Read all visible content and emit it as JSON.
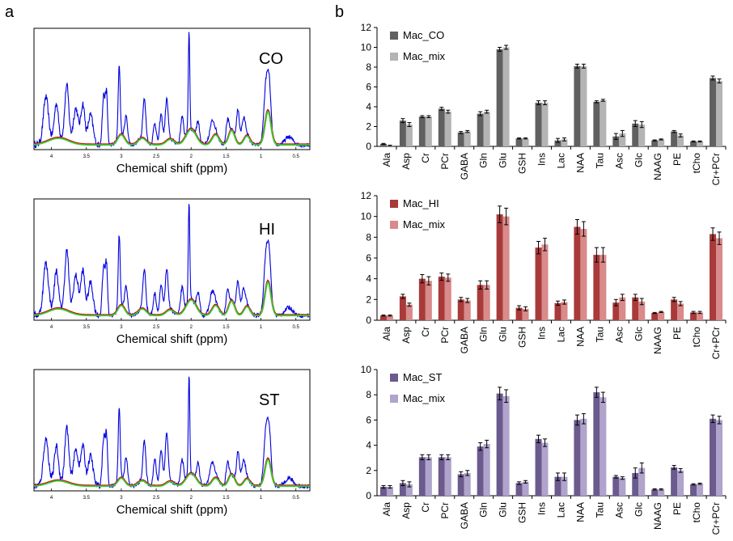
{
  "panel_labels": {
    "a": "a",
    "b": "b"
  },
  "spectra": {
    "xlabel": "Chemical shift (ppm)",
    "ticks": [
      "4",
      "3.5",
      "3",
      "2.5",
      "2",
      "1.5",
      "1",
      "0.5"
    ],
    "tick_values": [
      4,
      3.5,
      3,
      2.5,
      2,
      1.5,
      1,
      0.5
    ],
    "xlim": [
      4.25,
      0.3
    ],
    "colors": {
      "spectrum": "#0000dd",
      "fit": "#dd0000",
      "macro": "#33cc33"
    },
    "panels": [
      {
        "label": "CO"
      },
      {
        "label": "HI"
      },
      {
        "label": "ST"
      }
    ]
  },
  "chart_data": [
    {
      "type": "bar",
      "categories": [
        "Ala",
        "Asp",
        "Cr",
        "PCr",
        "GABA",
        "Gln",
        "Glu",
        "GSH",
        "Ins",
        "Lac",
        "NAA",
        "Tau",
        "Asc",
        "Glc",
        "NAAG",
        "PE",
        "tCho",
        "Cr+PCr"
      ],
      "ylim": [
        0,
        12
      ],
      "yticks": [
        0,
        2,
        4,
        6,
        8,
        10,
        12
      ],
      "legend_position": "top-left",
      "series": [
        {
          "name": "Mac_CO",
          "color": "#606060",
          "values": [
            0.25,
            2.6,
            3.0,
            3.8,
            1.4,
            3.3,
            9.8,
            0.8,
            4.4,
            0.6,
            8.1,
            4.5,
            1.0,
            2.3,
            0.6,
            1.5,
            0.5,
            6.9
          ],
          "errors": [
            0.05,
            0.2,
            0.1,
            0.15,
            0.1,
            0.2,
            0.2,
            0.05,
            0.2,
            0.2,
            0.2,
            0.1,
            0.3,
            0.3,
            0.05,
            0.1,
            0.05,
            0.2
          ]
        },
        {
          "name": "Mac_mix",
          "color": "#b4b4b4",
          "values": [
            0.1,
            2.2,
            3.0,
            3.5,
            1.5,
            3.5,
            10.0,
            0.8,
            4.4,
            0.7,
            8.1,
            4.65,
            1.3,
            2.2,
            0.7,
            1.1,
            0.5,
            6.6
          ],
          "errors": [
            0.02,
            0.2,
            0.1,
            0.15,
            0.1,
            0.15,
            0.2,
            0.05,
            0.2,
            0.15,
            0.2,
            0.1,
            0.3,
            0.3,
            0.05,
            0.15,
            0.05,
            0.2
          ]
        }
      ]
    },
    {
      "type": "bar",
      "categories": [
        "Ala",
        "Asp",
        "Cr",
        "PCr",
        "GABA",
        "Gln",
        "Glu",
        "GSH",
        "Ins",
        "Lac",
        "NAA",
        "Tau",
        "Asc",
        "Glc",
        "NAAG",
        "PE",
        "tCho",
        "Cr+PCr"
      ],
      "ylim": [
        0,
        12
      ],
      "yticks": [
        0,
        2,
        4,
        6,
        8,
        10,
        12
      ],
      "legend_position": "top-left",
      "series": [
        {
          "name": "Mac_HI",
          "color": "#a83a3a",
          "values": [
            0.45,
            2.3,
            4.0,
            4.2,
            2.0,
            3.4,
            10.2,
            1.2,
            7.0,
            1.65,
            9.0,
            6.3,
            1.7,
            2.2,
            0.7,
            2.0,
            0.75,
            8.3
          ],
          "errors": [
            0.05,
            0.2,
            0.4,
            0.35,
            0.2,
            0.4,
            0.8,
            0.2,
            0.6,
            0.2,
            0.7,
            0.7,
            0.3,
            0.3,
            0.05,
            0.2,
            0.1,
            0.6
          ]
        },
        {
          "name": "Mac_mix",
          "color": "#d98a8a",
          "values": [
            0.45,
            1.5,
            3.8,
            4.1,
            1.9,
            3.4,
            10.0,
            1.1,
            7.3,
            1.75,
            8.8,
            6.3,
            2.2,
            1.8,
            0.8,
            1.6,
            0.75,
            7.9
          ],
          "errors": [
            0.05,
            0.15,
            0.4,
            0.35,
            0.2,
            0.4,
            0.8,
            0.2,
            0.6,
            0.2,
            0.7,
            0.7,
            0.3,
            0.3,
            0.05,
            0.2,
            0.1,
            0.6
          ]
        }
      ]
    },
    {
      "type": "bar",
      "categories": [
        "Ala",
        "Asp",
        "Cr",
        "PCr",
        "GABA",
        "Gln",
        "Glu",
        "GSH",
        "Ins",
        "Lac",
        "NAA",
        "Tau",
        "Asc",
        "Glc",
        "NAAG",
        "PE",
        "tCho",
        "Cr+PCr"
      ],
      "ylim": [
        0,
        10
      ],
      "yticks": [
        0,
        2,
        4,
        6,
        8,
        10
      ],
      "legend_position": "top-left",
      "series": [
        {
          "name": "Mac_ST",
          "color": "#6b5a8e",
          "values": [
            0.7,
            1.0,
            3.05,
            3.05,
            1.7,
            3.9,
            8.1,
            1.0,
            4.5,
            1.5,
            6.0,
            8.2,
            1.5,
            1.8,
            0.5,
            2.25,
            0.9,
            6.1
          ],
          "errors": [
            0.1,
            0.2,
            0.2,
            0.2,
            0.2,
            0.3,
            0.5,
            0.1,
            0.3,
            0.3,
            0.4,
            0.4,
            0.1,
            0.4,
            0.05,
            0.15,
            0.05,
            0.3
          ]
        },
        {
          "name": "Mac_mix",
          "color": "#b0a3cc",
          "values": [
            0.7,
            0.9,
            3.05,
            3.05,
            1.8,
            4.1,
            7.9,
            1.1,
            4.2,
            1.5,
            6.1,
            7.8,
            1.4,
            2.2,
            0.5,
            2.0,
            0.95,
            6.0
          ],
          "errors": [
            0.1,
            0.2,
            0.2,
            0.2,
            0.2,
            0.3,
            0.5,
            0.1,
            0.3,
            0.3,
            0.4,
            0.4,
            0.1,
            0.4,
            0.05,
            0.15,
            0.05,
            0.3
          ]
        }
      ]
    }
  ]
}
